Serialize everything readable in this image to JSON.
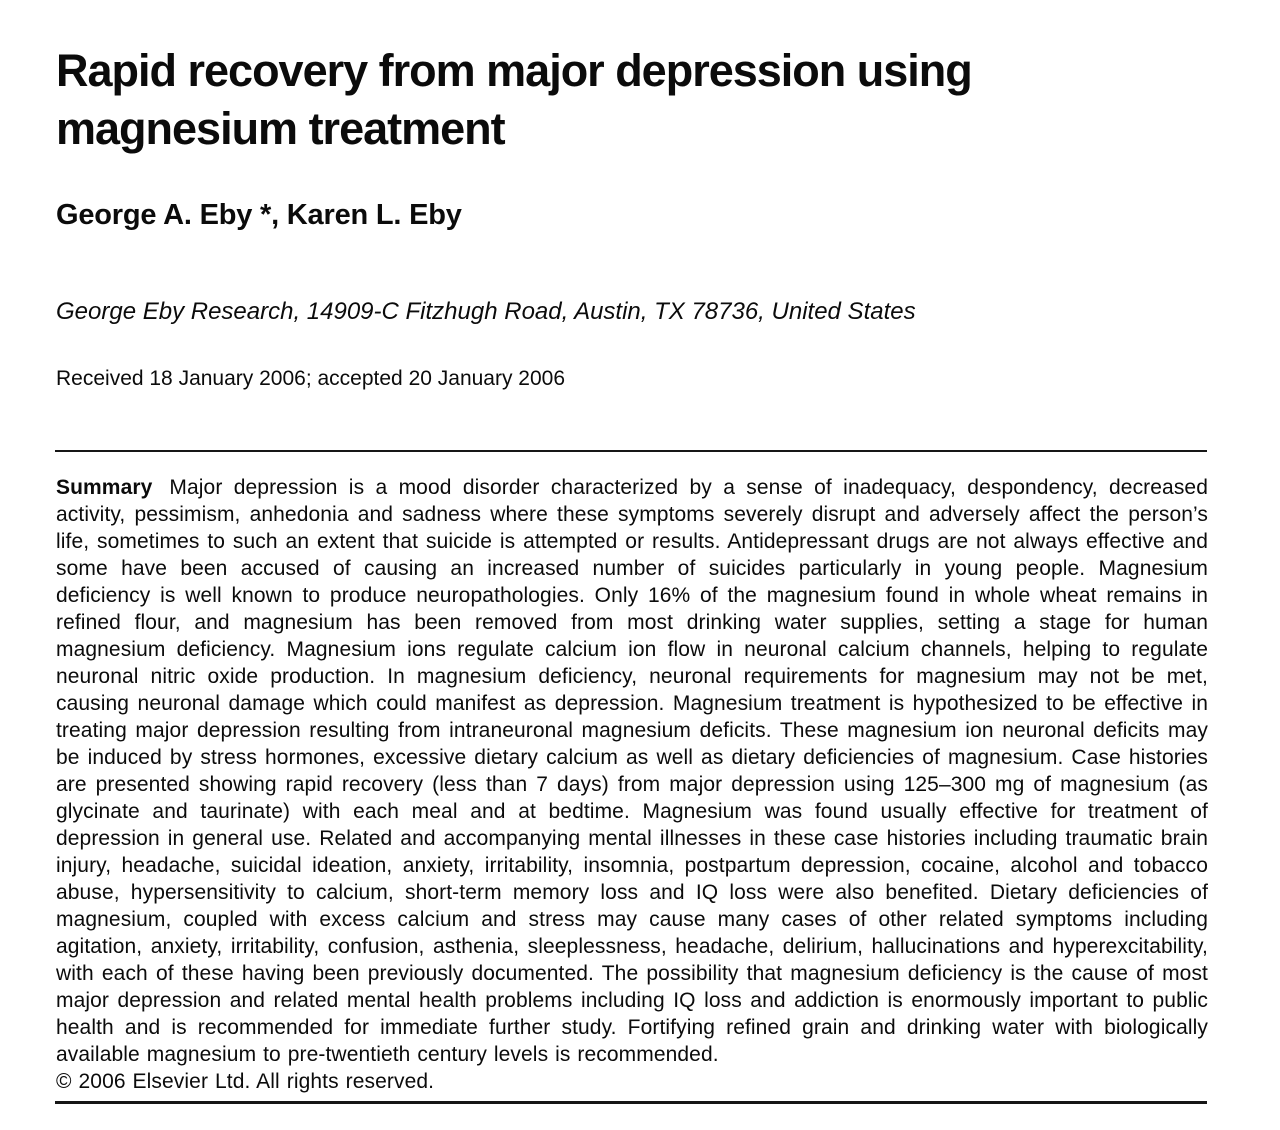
{
  "paper": {
    "title": "Rapid recovery from major depression using magnesium treatment",
    "authors": "George A. Eby *, Karen L. Eby",
    "affiliation": "George Eby Research, 14909-C Fitzhugh Road, Austin, TX 78736, United States",
    "received": "Received 18 January 2006; accepted 20 January 2006",
    "summary": {
      "label": "Summary",
      "body": "Major depression is a mood disorder characterized by a sense of inadequacy, despondency, decreased activity, pessimism, anhedonia and sadness where these symptoms severely disrupt and adversely affect the person’s life, sometimes to such an extent that suicide is attempted or results. Antidepressant drugs are not always effective and some have been accused of causing an increased number of suicides particularly in young people. Magnesium deficiency is well known to produce neuropathologies. Only 16% of the magnesium found in whole wheat remains in refined flour, and magnesium has been removed from most drinking water supplies, setting a stage for human magnesium deficiency. Magnesium ions regulate calcium ion flow in neuronal calcium channels, helping to regulate neuronal nitric oxide production. In magnesium deficiency, neuronal requirements for magnesium may not be met, causing neuronal damage which could manifest as depression. Magnesium treatment is hypothesized to be effective in treating major depression resulting from intraneuronal magnesium deficits. These magnesium ion neuronal deficits may be induced by stress hormones, excessive dietary calcium as well as dietary deficiencies of magnesium. Case histories are presented showing rapid recovery (less than 7 days) from major depression using 125–300 mg of magnesium (as glycinate and taurinate) with each meal and at bedtime. Magnesium was found usually effective for treatment of depression in general use. Related and accompanying mental illnesses in these case histories including traumatic brain injury, headache, suicidal ideation, anxiety, irritability, insomnia, postpartum depression, cocaine, alcohol and tobacco abuse, hypersensitivity to calcium, short-term memory loss and IQ loss were also benefited. Dietary deficiencies of magnesium, coupled with excess calcium and stress may cause many cases of other related symptoms including agitation, anxiety, irritability, confusion, asthenia, sleeplessness, headache, delirium, hallucinations and hyperexcitability, with each of these having been previously documented. The possibility that magnesium deficiency is the cause of most major depression and related mental health problems including IQ loss and addiction is enormously important to public health and is recommended for immediate further study. Fortifying refined grain and drinking water with biologically available magnesium to pre-twentieth century levels is recommended.",
      "copyright": "© 2006 Elsevier Ltd. All rights reserved."
    }
  }
}
